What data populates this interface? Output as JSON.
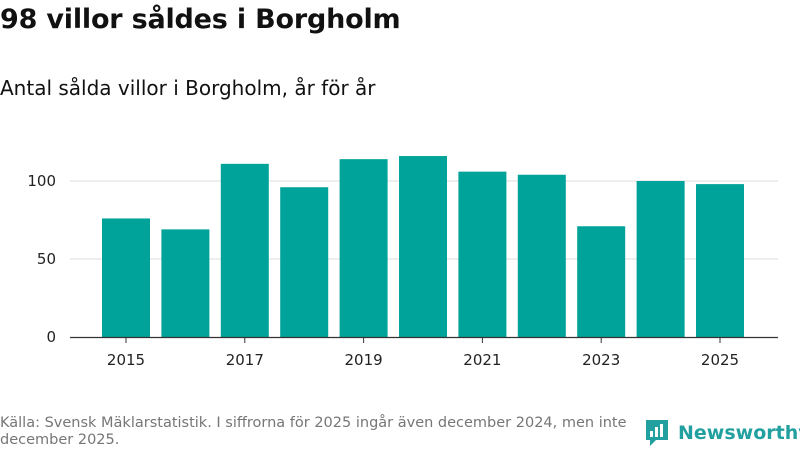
{
  "title": "98 villor såldes i Borgholm",
  "subtitle": "Antal sålda villor i Borgholm, år för år",
  "source": "Källa: Svensk Mäklarstatistik. I siffrorna för 2025 ingår även december 2024, men inte december 2025.",
  "brand": {
    "name": "Newsworthy"
  },
  "colors": {
    "bar": "#00a399",
    "brand": "#22a0a0",
    "grid": "#dddddd",
    "axis": "#333333"
  },
  "chart_data": {
    "type": "bar",
    "categories": [
      "2015",
      "2016",
      "2017",
      "2018",
      "2019",
      "2020",
      "2021",
      "2022",
      "2023",
      "2024",
      "2025"
    ],
    "values": [
      76,
      69,
      111,
      96,
      114,
      116,
      106,
      104,
      71,
      100,
      98
    ],
    "x_tick_labels": [
      "2015",
      "",
      "2017",
      "",
      "2019",
      "",
      "2021",
      "",
      "2023",
      "",
      "2025"
    ],
    "y_ticks": [
      0,
      50,
      100
    ],
    "ylim": [
      0,
      120
    ],
    "grid": true,
    "legend": "none",
    "xlabel": "",
    "ylabel": ""
  }
}
